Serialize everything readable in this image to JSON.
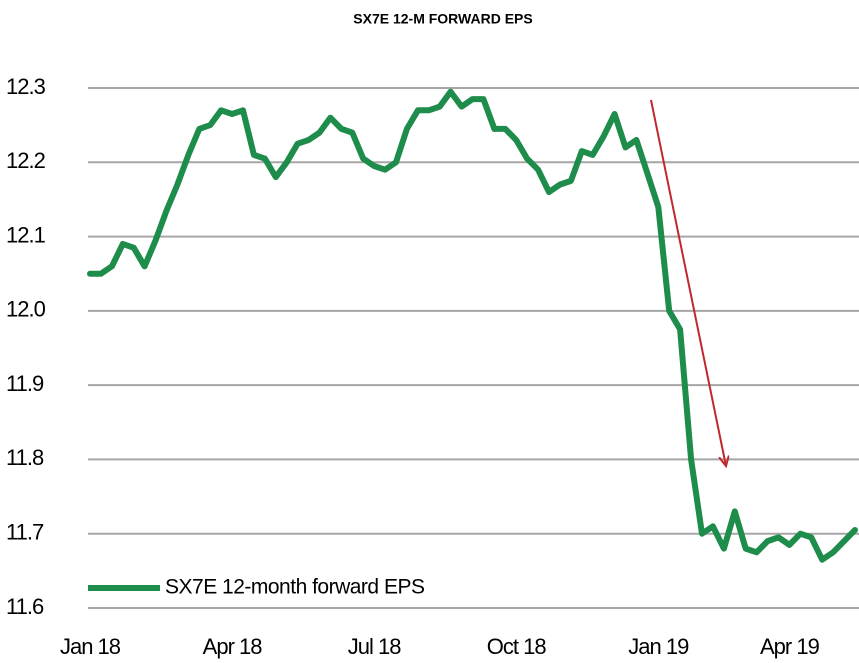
{
  "chart_data": {
    "type": "line",
    "title": "SX7E 12-M FORWARD EPS",
    "categories": [
      "Jan 18",
      null,
      null,
      null,
      null,
      null,
      null,
      null,
      null,
      null,
      null,
      null,
      null,
      "Apr 18",
      null,
      null,
      null,
      null,
      null,
      null,
      null,
      null,
      null,
      null,
      null,
      null,
      "Jul 18",
      null,
      null,
      null,
      null,
      null,
      null,
      null,
      null,
      null,
      null,
      null,
      null,
      "Oct 18",
      null,
      null,
      null,
      null,
      null,
      null,
      null,
      null,
      null,
      null,
      null,
      null,
      "Jan 19",
      null,
      null,
      null,
      null,
      null,
      null,
      null,
      null,
      null,
      null,
      null,
      "Apr 19",
      null,
      null,
      null,
      null,
      null,
      null
    ],
    "series": [
      {
        "name": "SX7E 12-month forward EPS",
        "color": "#1e8c4a",
        "values": [
          12.05,
          12.05,
          12.06,
          12.09,
          12.085,
          12.06,
          12.095,
          12.135,
          12.17,
          12.21,
          12.245,
          12.25,
          12.27,
          12.265,
          12.27,
          12.21,
          12.205,
          12.18,
          12.2,
          12.225,
          12.23,
          12.24,
          12.26,
          12.245,
          12.24,
          12.205,
          12.195,
          12.19,
          12.2,
          12.245,
          12.27,
          12.27,
          12.275,
          12.295,
          12.275,
          12.285,
          12.285,
          12.245,
          12.245,
          12.23,
          12.205,
          12.19,
          12.16,
          12.17,
          12.175,
          12.215,
          12.21,
          12.235,
          12.265,
          12.22,
          12.23,
          12.185,
          12.14,
          12.0,
          11.975,
          11.8,
          11.7,
          11.71,
          11.68,
          11.73,
          11.68,
          11.675,
          11.69,
          11.695,
          11.685,
          11.7,
          11.695,
          11.665,
          11.675,
          11.69,
          11.705
        ]
      }
    ],
    "ylim": [
      11.6,
      12.3
    ],
    "yticks": [
      11.6,
      11.7,
      11.8,
      11.9,
      {
        "value": 12,
        "label": "12.0"
      },
      12.1,
      12.2,
      12.3
    ],
    "grid": true,
    "legend": "lower left"
  }
}
